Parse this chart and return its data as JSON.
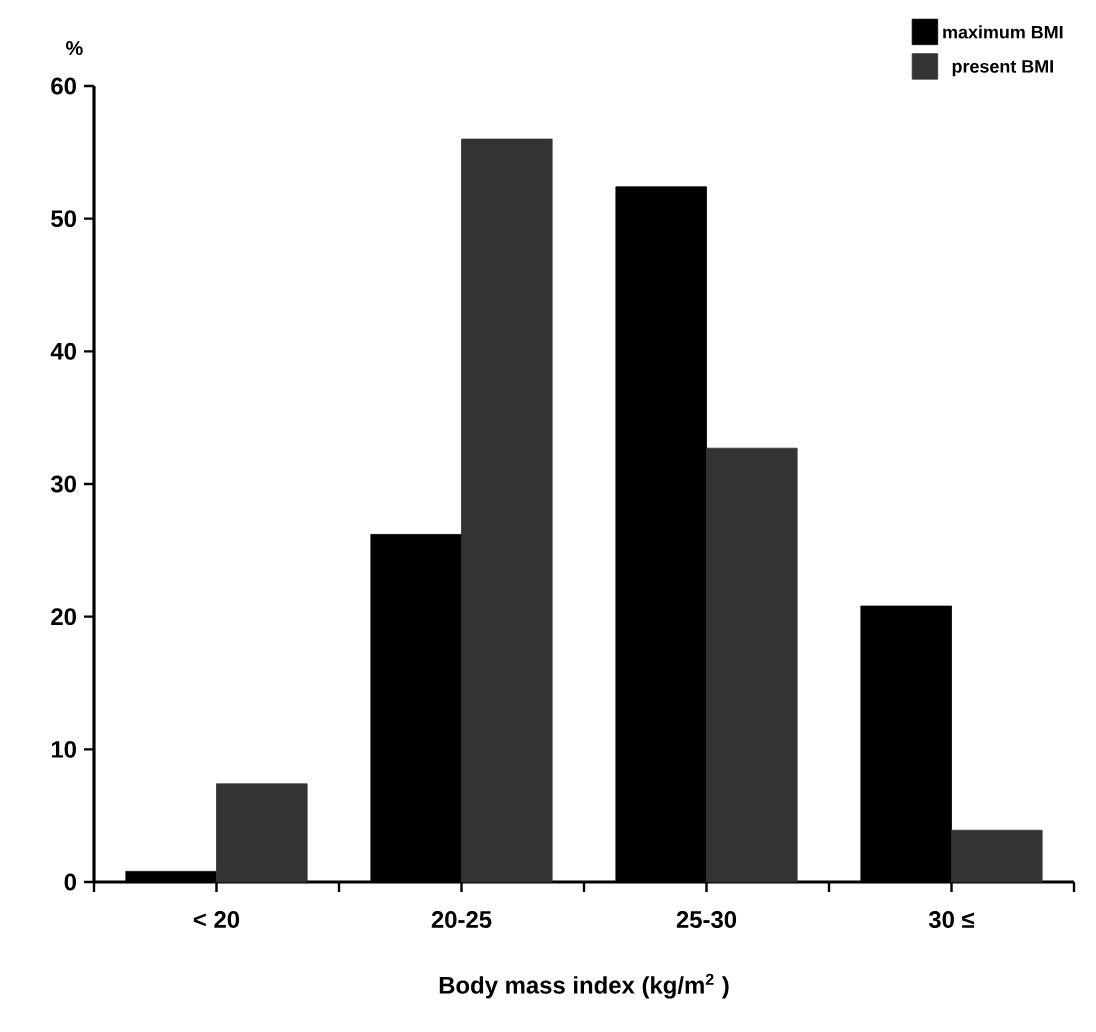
{
  "chart_data": {
    "type": "bar",
    "ylabel": "%",
    "xlabel": "Body mass index (kg/m$^{2}$ )",
    "categories": [
      "< 20",
      "20-25",
      "25-30",
      "30 ≤"
    ],
    "series": [
      {
        "name": "maximum BMI",
        "color": "#000000",
        "values": [
          0.8,
          26.2,
          52.4,
          20.8
        ]
      },
      {
        "name": "present BMI",
        "color": "#333333",
        "values": [
          7.4,
          56.0,
          32.7,
          3.9
        ]
      }
    ],
    "ylim": [
      0,
      60
    ],
    "yticks": [
      0,
      10,
      20,
      30,
      40,
      50,
      60
    ],
    "legend": "top right",
    "grid": false
  }
}
